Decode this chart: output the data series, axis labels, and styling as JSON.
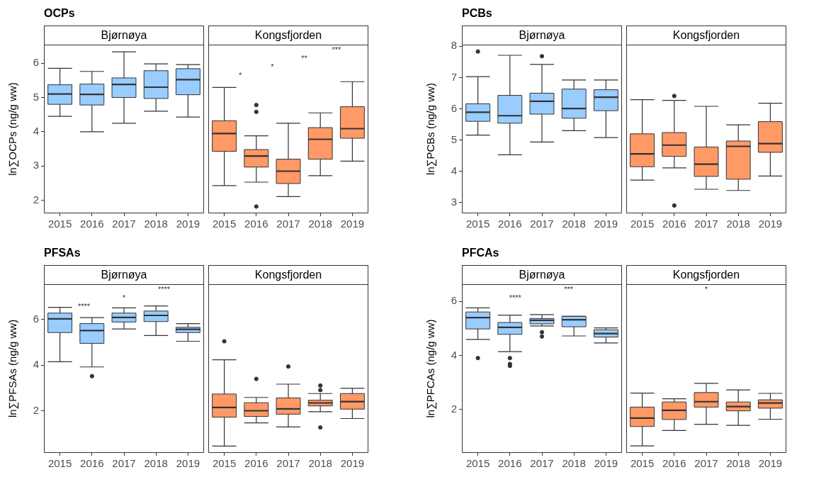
{
  "chart_data": [
    {
      "type": "box",
      "title": "OCPs",
      "subtitle": "Bjørnøya",
      "ylabel": "ln∑OCPs (ng/g ww)",
      "categories": [
        "2015",
        "2016",
        "2017",
        "2018",
        "2019"
      ],
      "ylim": [
        1.62,
        6.54
      ],
      "yticks": [
        2,
        3,
        4,
        5,
        6
      ],
      "series": [
        {
          "color": "#99ccff",
          "boxes": [
            {
              "low": 4.45,
              "q1": 4.8,
              "median": 5.1,
              "q3": 5.37,
              "high": 5.85
            },
            {
              "low": 4.0,
              "q1": 4.78,
              "median": 5.09,
              "q3": 5.39,
              "high": 5.76
            },
            {
              "low": 4.25,
              "q1": 5.0,
              "median": 5.38,
              "q3": 5.57,
              "high": 6.33
            },
            {
              "low": 4.6,
              "q1": 4.97,
              "median": 5.3,
              "q3": 5.78,
              "high": 5.98
            },
            {
              "low": 4.43,
              "q1": 5.08,
              "median": 5.52,
              "q3": 5.84,
              "high": 5.96
            }
          ]
        }
      ]
    },
    {
      "type": "box",
      "subtitle": "Kongsfjorden",
      "categories": [
        "2015",
        "2016",
        "2017",
        "2018",
        "2019"
      ],
      "ylim": [
        1.62,
        6.54
      ],
      "yticks": [
        2,
        3,
        4,
        5,
        6
      ],
      "tick_labels": "x",
      "annotations": [
        "*",
        "*",
        "**",
        "***"
      ],
      "series": [
        {
          "color": "#ff9966",
          "boxes": [
            {
              "low": 2.43,
              "q1": 3.43,
              "median": 3.95,
              "q3": 4.32,
              "high": 5.29
            },
            {
              "low": 2.53,
              "q1": 2.97,
              "median": 3.29,
              "q3": 3.48,
              "high": 3.88,
              "outliers": [
                4.78,
                4.58,
                1.82
              ]
            },
            {
              "low": 2.11,
              "q1": 2.49,
              "median": 2.85,
              "q3": 3.2,
              "high": 4.25
            },
            {
              "low": 2.72,
              "q1": 3.2,
              "median": 3.78,
              "q3": 4.12,
              "high": 4.55
            },
            {
              "low": 3.14,
              "q1": 3.81,
              "median": 4.09,
              "q3": 4.73,
              "high": 5.46
            }
          ]
        }
      ]
    },
    {
      "type": "box",
      "title": "PCBs",
      "subtitle": "Bjørnøya",
      "ylabel": "ln∑PCBs (ng/g ww)",
      "categories": [
        "2015",
        "2016",
        "2017",
        "2018",
        "2019"
      ],
      "ylim": [
        2.66,
        8.05
      ],
      "yticks": [
        3,
        4,
        5,
        6,
        7,
        8
      ],
      "series": [
        {
          "color": "#99ccff",
          "boxes": [
            {
              "low": 5.16,
              "q1": 5.6,
              "median": 5.89,
              "q3": 6.16,
              "high": 7.03,
              "outliers": [
                7.83
              ]
            },
            {
              "low": 4.53,
              "q1": 5.54,
              "median": 5.78,
              "q3": 6.43,
              "high": 7.71
            },
            {
              "low": 4.94,
              "q1": 5.83,
              "median": 6.24,
              "q3": 6.5,
              "high": 7.42,
              "outliers": [
                7.68
              ]
            },
            {
              "low": 5.3,
              "q1": 5.7,
              "median": 6.01,
              "q3": 6.63,
              "high": 6.92
            },
            {
              "low": 5.08,
              "q1": 5.94,
              "median": 6.37,
              "q3": 6.61,
              "high": 6.92
            }
          ]
        }
      ]
    },
    {
      "type": "box",
      "subtitle": "Kongsfjorden",
      "categories": [
        "2015",
        "2016",
        "2017",
        "2018",
        "2019"
      ],
      "ylim": [
        2.66,
        8.05
      ],
      "yticks": [
        3,
        4,
        5,
        6,
        7,
        8
      ],
      "tick_labels": "x",
      "series": [
        {
          "color": "#ff9966",
          "boxes": [
            {
              "low": 3.72,
              "q1": 4.15,
              "median": 4.56,
              "q3": 5.2,
              "high": 6.29
            },
            {
              "low": 4.11,
              "q1": 4.48,
              "median": 4.84,
              "q3": 5.24,
              "high": 6.27,
              "outliers": [
                6.41,
                2.91
              ]
            },
            {
              "low": 3.43,
              "q1": 3.84,
              "median": 4.23,
              "q3": 4.78,
              "high": 6.08
            },
            {
              "low": 3.39,
              "q1": 3.75,
              "median": 4.8,
              "q3": 4.97,
              "high": 5.49
            },
            {
              "low": 3.85,
              "q1": 4.61,
              "median": 4.89,
              "q3": 5.59,
              "high": 6.18
            }
          ]
        }
      ]
    },
    {
      "type": "box",
      "title": "PFSAs",
      "subtitle": "Bjørnøya",
      "ylabel": "ln∑PFSAs (ng/g ww)",
      "categories": [
        "2015",
        "2016",
        "2017",
        "2018",
        "2019"
      ],
      "ylim": [
        0.17,
        7.53
      ],
      "yticks": [
        2,
        4,
        6
      ],
      "annotations": [
        "****",
        "*",
        "****"
      ],
      "series": [
        {
          "color": "#99ccff",
          "boxes": [
            {
              "low": 4.15,
              "q1": 5.42,
              "median": 6.02,
              "q3": 6.27,
              "high": 6.52
            },
            {
              "low": 3.92,
              "q1": 4.95,
              "median": 5.51,
              "q3": 5.81,
              "high": 6.07,
              "outliers": [
                3.52
              ]
            },
            {
              "low": 5.58,
              "q1": 5.88,
              "median": 6.08,
              "q3": 6.27,
              "high": 6.5
            },
            {
              "low": 5.29,
              "q1": 5.9,
              "median": 6.17,
              "q3": 6.36,
              "high": 6.58
            },
            {
              "low": 5.04,
              "q1": 5.42,
              "median": 5.56,
              "q3": 5.65,
              "high": 5.81
            }
          ]
        }
      ]
    },
    {
      "type": "box",
      "subtitle": "Kongsfjorden",
      "categories": [
        "2015",
        "2016",
        "2017",
        "2018",
        "2019"
      ],
      "ylim": [
        0.17,
        7.53
      ],
      "yticks": [
        2,
        4,
        6
      ],
      "tick_labels": "x",
      "series": [
        {
          "color": "#ff9966",
          "boxes": [
            {
              "low": 0.47,
              "q1": 1.73,
              "median": 2.15,
              "q3": 2.74,
              "high": 4.23,
              "outliers": [
                5.04
              ]
            },
            {
              "low": 1.48,
              "q1": 1.76,
              "median": 2.01,
              "q3": 2.36,
              "high": 2.59,
              "outliers": [
                3.4
              ]
            },
            {
              "low": 1.3,
              "q1": 1.86,
              "median": 2.09,
              "q3": 2.57,
              "high": 3.17,
              "outliers": [
                3.94
              ]
            },
            {
              "low": 1.97,
              "q1": 2.22,
              "median": 2.35,
              "q3": 2.47,
              "high": 2.76,
              "outliers": [
                3.11,
                2.91,
                1.28
              ]
            },
            {
              "low": 1.67,
              "q1": 2.08,
              "median": 2.41,
              "q3": 2.76,
              "high": 2.99
            }
          ]
        }
      ]
    },
    {
      "type": "box",
      "title": "PFCAs",
      "subtitle": "Bjørnøya",
      "ylabel": "ln∑PFCAs (ng/g ww)",
      "categories": [
        "2015",
        "2016",
        "2017",
        "2018",
        "2019"
      ],
      "ylim": [
        0.38,
        6.64
      ],
      "yticks": [
        2,
        4,
        6
      ],
      "annotations": [
        "****",
        "***"
      ],
      "series": [
        {
          "color": "#99ccff",
          "boxes": [
            {
              "low": 4.59,
              "q1": 4.98,
              "median": 5.4,
              "q3": 5.61,
              "high": 5.76,
              "outliers": [
                3.9
              ]
            },
            {
              "low": 4.14,
              "q1": 4.78,
              "median": 5.04,
              "q3": 5.22,
              "high": 5.49,
              "outliers": [
                3.9,
                3.68,
                3.61
              ]
            },
            {
              "low": 5.09,
              "q1": 5.17,
              "median": 5.3,
              "q3": 5.37,
              "high": 5.51,
              "outliers": [
                4.86,
                4.7
              ]
            },
            {
              "low": 4.72,
              "q1": 5.06,
              "median": 5.32,
              "q3": 5.45,
              "high": 5.45
            },
            {
              "low": 4.46,
              "q1": 4.68,
              "median": 4.81,
              "q3": 4.95,
              "high": 5.02
            }
          ]
        }
      ]
    },
    {
      "type": "box",
      "subtitle": "Kongsfjorden",
      "categories": [
        "2015",
        "2016",
        "2017",
        "2018",
        "2019"
      ],
      "ylim": [
        0.38,
        6.64
      ],
      "yticks": [
        2,
        4,
        6
      ],
      "tick_labels": "x",
      "annotations": [
        "*"
      ],
      "series": [
        {
          "color": "#ff9966",
          "boxes": [
            {
              "low": 0.64,
              "q1": 1.36,
              "median": 1.67,
              "q3": 2.08,
              "high": 2.6
            },
            {
              "low": 1.21,
              "q1": 1.62,
              "median": 1.96,
              "q3": 2.27,
              "high": 2.39
            },
            {
              "low": 1.44,
              "q1": 2.08,
              "median": 2.28,
              "q3": 2.62,
              "high": 2.96
            },
            {
              "low": 1.4,
              "q1": 1.94,
              "median": 2.1,
              "q3": 2.27,
              "high": 2.72
            },
            {
              "low": 1.63,
              "q1": 2.04,
              "median": 2.23,
              "q3": 2.35,
              "high": 2.59
            }
          ]
        }
      ]
    }
  ]
}
